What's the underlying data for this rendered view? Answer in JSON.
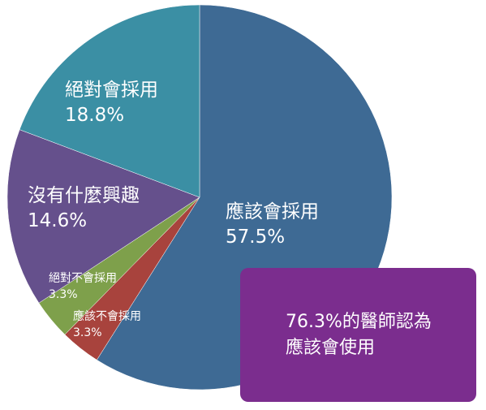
{
  "chart_data": {
    "type": "pie",
    "title": "",
    "start_angle_deg": 0,
    "direction": "clockwise",
    "slices": [
      {
        "label": "應該會採用",
        "value": 57.5,
        "display": "57.5%",
        "color": "#3e6a94"
      },
      {
        "label": "應該不會採用",
        "value": 3.3,
        "display": "3.3%",
        "color": "#a8433d"
      },
      {
        "label": "絕對不會採用",
        "value": 3.3,
        "display": "3.3%",
        "color": "#7ea04b"
      },
      {
        "label": "沒有什麼興趣",
        "value": 14.6,
        "display": "14.6%",
        "color": "#65508c"
      },
      {
        "label": "絕對會採用",
        "value": 18.8,
        "display": "18.8%",
        "color": "#3b8fa4"
      }
    ]
  },
  "callout": {
    "line1": "76.3%的醫師認為",
    "line2": "應該會使用",
    "color": "#7b2d8e"
  }
}
